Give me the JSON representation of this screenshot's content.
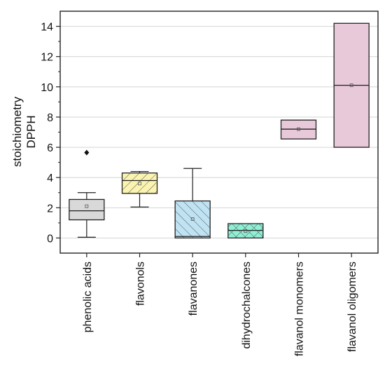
{
  "chart_data": {
    "type": "box",
    "ylabel_line1": "stoichiometry",
    "ylabel_line2": "DPPH",
    "ylim": [
      -1,
      15
    ],
    "yticks": [
      0,
      2,
      4,
      6,
      8,
      10,
      12,
      14
    ],
    "grid": "horizontal",
    "categories": [
      "phenolic acids",
      "flavonols",
      "flavanones",
      "dihydrochalcones",
      "flavanol monomers",
      "flavanol oligomers"
    ],
    "boxes": [
      {
        "name": "phenolic acids",
        "whisker_low": 0.05,
        "q1": 1.2,
        "median": 1.8,
        "q3": 2.55,
        "whisker_high": 3.0,
        "mean": 2.1,
        "outliers": [
          5.65
        ],
        "fill": "#d9d9d9",
        "pattern": "none"
      },
      {
        "name": "flavonols",
        "whisker_low": 2.05,
        "q1": 2.95,
        "median": 3.8,
        "q3": 4.3,
        "whisker_high": 4.4,
        "mean": 3.6,
        "outliers": [],
        "fill": "#fbf3b0",
        "pattern": "diag-right"
      },
      {
        "name": "flavanones",
        "whisker_low": 0.0,
        "q1": 0.0,
        "median": 0.1,
        "q3": 2.45,
        "whisker_high": 4.6,
        "mean": 1.25,
        "outliers": [],
        "fill": "#bfe3f3",
        "pattern": "diag-left"
      },
      {
        "name": "dihydrochalcones",
        "whisker_low": 0.0,
        "q1": 0.0,
        "median": 0.5,
        "q3": 0.95,
        "whisker_high": 0.95,
        "mean": 0.45,
        "outliers": [],
        "fill": "#8ff0d6",
        "pattern": "cross"
      },
      {
        "name": "flavanol monomers",
        "whisker_low": 6.55,
        "q1": 6.55,
        "median": 7.2,
        "q3": 7.8,
        "whisker_high": 7.8,
        "mean": 7.2,
        "outliers": [],
        "fill": "#e8c9d9",
        "pattern": "none"
      },
      {
        "name": "flavanol oligomers",
        "whisker_low": 6.0,
        "q1": 6.0,
        "median": 10.1,
        "q3": 14.2,
        "whisker_high": 14.2,
        "mean": 10.1,
        "outliers": [],
        "fill": "#e8c9d9",
        "pattern": "none"
      }
    ]
  }
}
